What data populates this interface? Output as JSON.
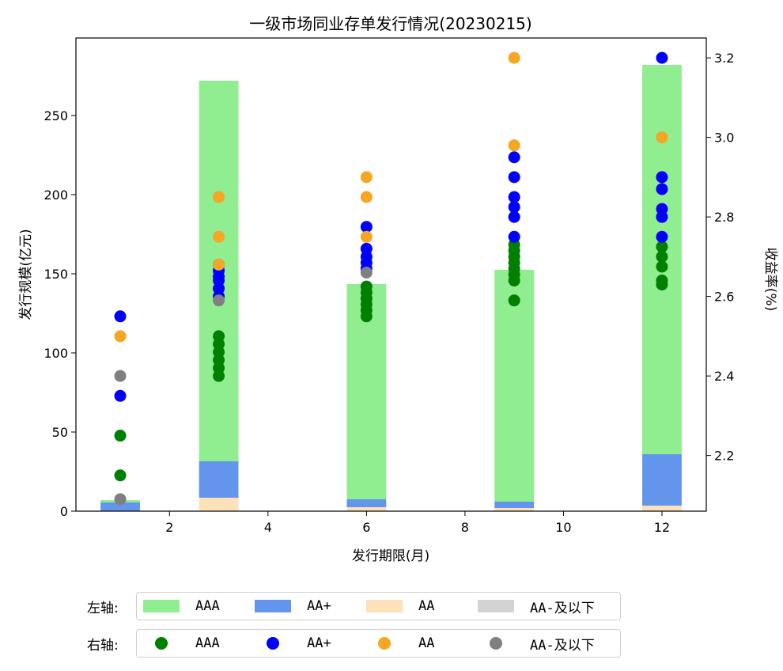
{
  "chart_data": {
    "type": "bar+scatter",
    "title": "一级市场同业存单发行情况(20230215)",
    "xlabel": "发行期限(月)",
    "ylabel_left": "发行规模(亿元)",
    "ylabel_right": "收益率(%)",
    "xlim": [
      0.1,
      12.9
    ],
    "ylim_left": [
      0,
      299
    ],
    "ylim_right": [
      2.06,
      3.25
    ],
    "x_ticks": [
      2,
      4,
      6,
      8,
      10,
      12
    ],
    "y_ticks_left": [
      0,
      50,
      100,
      150,
      200,
      250
    ],
    "y_ticks_right": [
      2.2,
      2.4,
      2.6,
      2.8,
      3.0,
      3.2
    ],
    "y_ticks_right_labels": [
      "2.2",
      "2.4",
      "2.6",
      "2.8",
      "3.0",
      "3.2"
    ],
    "bar_width_months": 0.8,
    "bars": {
      "x": [
        1,
        3,
        6,
        9,
        12
      ],
      "series": [
        {
          "name": "AA-及以下",
          "color": "#d3d3d3",
          "values": [
            0,
            0,
            0,
            0,
            0
          ]
        },
        {
          "name": "AA",
          "color": "#fde2b9",
          "values": [
            0,
            8.5,
            2.5,
            2,
            3.5
          ]
        },
        {
          "name": "AA+",
          "color": "#6495ed",
          "values": [
            5.5,
            23,
            5,
            4,
            32.5
          ]
        },
        {
          "name": "AAA",
          "color": "#90ee90",
          "values": [
            1.5,
            240.5,
            136,
            146.5,
            246
          ]
        }
      ]
    },
    "scatter": {
      "series": [
        {
          "name": "AAA",
          "color": "#008000",
          "points": [
            [
              1,
              2.15
            ],
            [
              1,
              2.25
            ],
            [
              3,
              2.4
            ],
            [
              3,
              2.42
            ],
            [
              3,
              2.44
            ],
            [
              3,
              2.46
            ],
            [
              3,
              2.48
            ],
            [
              3,
              2.5
            ],
            [
              6,
              2.55
            ],
            [
              6,
              2.565
            ],
            [
              6,
              2.58
            ],
            [
              6,
              2.595
            ],
            [
              6,
              2.61
            ],
            [
              6,
              2.625
            ],
            [
              9,
              2.59
            ],
            [
              9,
              2.64
            ],
            [
              9,
              2.655
            ],
            [
              9,
              2.67
            ],
            [
              9,
              2.685
            ],
            [
              9,
              2.7
            ],
            [
              9,
              2.715
            ],
            [
              9,
              2.73
            ],
            [
              12,
              2.63
            ],
            [
              12,
              2.64
            ],
            [
              12,
              2.675
            ],
            [
              12,
              2.7
            ],
            [
              12,
              2.725
            ]
          ]
        },
        {
          "name": "AA+",
          "color": "#0000ff",
          "points": [
            [
              1,
              2.35
            ],
            [
              1,
              2.55
            ],
            [
              3,
              2.6
            ],
            [
              3,
              2.62
            ],
            [
              3,
              2.64
            ],
            [
              3,
              2.65
            ],
            [
              3,
              2.665
            ],
            [
              3,
              2.68
            ],
            [
              6,
              2.67
            ],
            [
              6,
              2.685
            ],
            [
              6,
              2.7
            ],
            [
              6,
              2.72
            ],
            [
              6,
              2.775
            ],
            [
              9,
              2.75
            ],
            [
              9,
              2.8
            ],
            [
              9,
              2.825
            ],
            [
              9,
              2.85
            ],
            [
              9,
              2.9
            ],
            [
              9,
              2.95
            ],
            [
              12,
              2.75
            ],
            [
              12,
              2.8
            ],
            [
              12,
              2.82
            ],
            [
              12,
              2.87
            ],
            [
              12,
              2.9
            ],
            [
              12,
              3.2
            ]
          ]
        },
        {
          "name": "AA",
          "color": "#f5a623",
          "points": [
            [
              1,
              2.5
            ],
            [
              3,
              2.68
            ],
            [
              3,
              2.75
            ],
            [
              3,
              2.85
            ],
            [
              6,
              2.75
            ],
            [
              6,
              2.85
            ],
            [
              6,
              2.9
            ],
            [
              9,
              2.98
            ],
            [
              9,
              3.2
            ],
            [
              12,
              3.0
            ]
          ]
        },
        {
          "name": "AA-及以下",
          "color": "#808080",
          "points": [
            [
              1,
              2.09
            ],
            [
              1,
              2.4
            ],
            [
              3,
              2.59
            ],
            [
              6,
              2.66
            ]
          ]
        }
      ]
    }
  },
  "legend": {
    "left_title": "左轴:",
    "right_title": "右轴:",
    "left_items": [
      {
        "label": "AAA",
        "color": "#90ee90"
      },
      {
        "label": "AA+",
        "color": "#6495ed"
      },
      {
        "label": "AA",
        "color": "#fde2b9"
      },
      {
        "label": "AA-及以下",
        "color": "#d3d3d3"
      }
    ],
    "right_items": [
      {
        "label": "AAA",
        "color": "#008000"
      },
      {
        "label": "AA+",
        "color": "#0000ff"
      },
      {
        "label": "AA",
        "color": "#f5a623"
      },
      {
        "label": "AA-及以下",
        "color": "#808080"
      }
    ]
  }
}
